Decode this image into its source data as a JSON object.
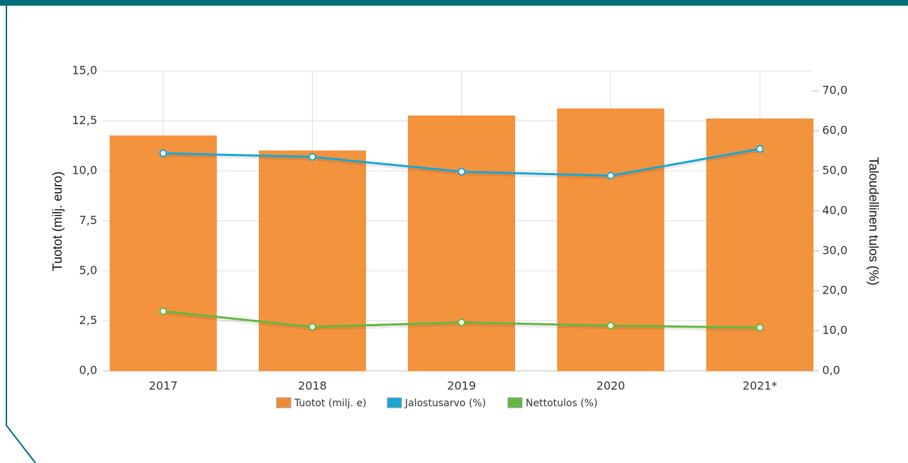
{
  "chart_data": {
    "type": "bar_line",
    "categories": [
      "2017",
      "2018",
      "2019",
      "2020",
      "2021*"
    ],
    "ylabel": "Tuotot (milj. euro)",
    "y2label": "Taloudellinen tulos (%)",
    "ylim": [
      0,
      15
    ],
    "yticks": [
      {
        "value": 0,
        "label": "0,0"
      },
      {
        "value": 2.5,
        "label": "2,5"
      },
      {
        "value": 5,
        "label": "5,0"
      },
      {
        "value": 7.5,
        "label": "7,5"
      },
      {
        "value": 10,
        "label": "10,0"
      },
      {
        "value": 12.5,
        "label": "12,5"
      },
      {
        "value": 15,
        "label": "15,0"
      }
    ],
    "y2lim": [
      0,
      75
    ],
    "y2ticks": [
      {
        "value": 0,
        "label": "0,0"
      },
      {
        "value": 10,
        "label": "10,0"
      },
      {
        "value": 20,
        "label": "20,0"
      },
      {
        "value": 30,
        "label": "30,0"
      },
      {
        "value": 40,
        "label": "40,0"
      },
      {
        "value": 50,
        "label": "50,0"
      },
      {
        "value": 60,
        "label": "60,0"
      },
      {
        "value": 70,
        "label": "70,0"
      }
    ],
    "grid": true,
    "legend": "bottom",
    "series": [
      {
        "name": "Tuotot (milj. e)",
        "type": "bar",
        "color": "#f28a2e",
        "values": [
          11.75,
          11.0,
          12.75,
          13.1,
          12.6
        ]
      },
      {
        "name": "Jalostusarvo (%)",
        "type": "line",
        "axis": "y2",
        "color": "#1aa6d6",
        "values": [
          54.4,
          53.5,
          49.8,
          48.8,
          55.5
        ]
      },
      {
        "name": "Nettotulos (%)",
        "type": "line",
        "axis": "y2",
        "color": "#62b843",
        "values": [
          14.9,
          11.0,
          12.1,
          11.3,
          10.8
        ]
      }
    ]
  }
}
